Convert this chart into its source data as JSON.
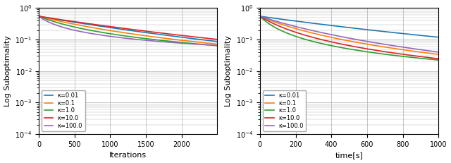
{
  "left_plot": {
    "xlabel": "Iterations",
    "ylabel": "Log Suboptimality",
    "xlim": [
      0,
      2500
    ],
    "ylim": [
      0.0001,
      1.0
    ],
    "xticks": [
      0,
      500,
      1000,
      1500,
      2000
    ],
    "curves": [
      {
        "kappa": 0.01,
        "color": "#1f77b4",
        "a": 0.55,
        "b": 0.5,
        "c": 0.22
      },
      {
        "kappa": 0.1,
        "color": "#ff7f0e",
        "a": 0.55,
        "b": 1.5,
        "c": 0.45
      },
      {
        "kappa": 1.0,
        "color": "#2ca02c",
        "a": 0.55,
        "b": 4.0,
        "c": 0.75
      },
      {
        "kappa": 10.0,
        "color": "#d62728",
        "a": 0.55,
        "b": 0.45,
        "c": 0.22
      },
      {
        "kappa": 100.0,
        "color": "#9467bd",
        "a": 0.55,
        "b": 12.0,
        "c": 1.2
      }
    ]
  },
  "right_plot": {
    "xlabel": "time[s]",
    "ylabel": "Log Suboptimality",
    "xlim": [
      0,
      1000
    ],
    "ylim": [
      0.0001,
      1.0
    ],
    "xticks": [
      0,
      200,
      400,
      600,
      800,
      1000
    ],
    "curves": [
      {
        "kappa": 0.01,
        "color": "#1f77b4",
        "a": 0.55,
        "b": 0.4,
        "c": 0.22
      },
      {
        "kappa": 0.1,
        "color": "#ff7f0e",
        "a": 0.55,
        "b": 2.5,
        "c": 0.45
      },
      {
        "kappa": 1.0,
        "color": "#2ca02c",
        "a": 0.55,
        "b": 10.0,
        "c": 0.75
      },
      {
        "kappa": 10.0,
        "color": "#d62728",
        "a": 0.55,
        "b": 4.5,
        "c": 0.55
      },
      {
        "kappa": 100.0,
        "color": "#9467bd",
        "a": 0.55,
        "b": 1.5,
        "c": 0.35
      }
    ]
  },
  "legend_labels": [
    "κ=0.01",
    "κ=0.1",
    "κ=1.0",
    "κ=10.0",
    "κ=100.0"
  ],
  "legend_colors": [
    "#1f77b4",
    "#ff7f0e",
    "#2ca02c",
    "#d62728",
    "#9467bd"
  ],
  "background_color": "#ffffff",
  "grid_color": "#b0b0b0"
}
